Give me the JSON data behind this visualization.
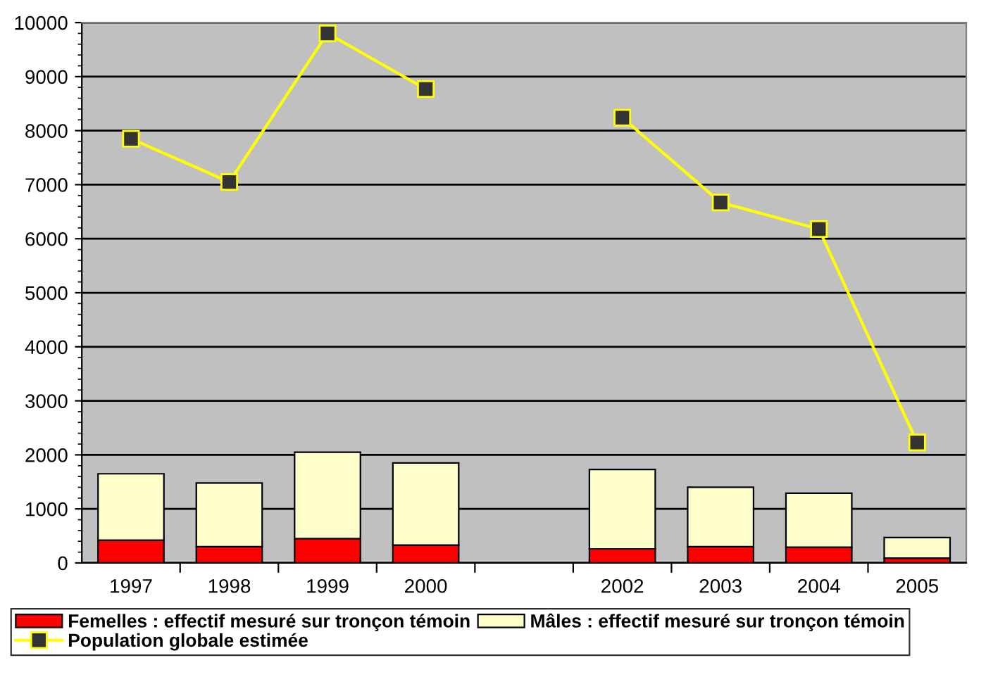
{
  "chart_data": {
    "type": "bar",
    "stacked": true,
    "categories": [
      "1997",
      "1998",
      "1999",
      "2000",
      null,
      "2002",
      "2003",
      "2004",
      "2005"
    ],
    "series": [
      {
        "name": "Femelles : effectif mesuré sur tronçon témoin",
        "color": "#ff0000",
        "values": [
          420,
          300,
          450,
          330,
          null,
          260,
          300,
          290,
          90
        ]
      },
      {
        "name": "Mâles : effectif mesuré sur tronçon témoin",
        "color": "#ffffcc",
        "values": [
          1230,
          1180,
          1600,
          1520,
          null,
          1470,
          1100,
          1000,
          380
        ]
      },
      {
        "name": "Population globale estimée",
        "type": "line",
        "color": "#ffff00",
        "marker": "square",
        "values": [
          7850,
          7050,
          9800,
          8770,
          null,
          8240,
          6670,
          6180,
          2230
        ]
      }
    ],
    "ylim": [
      0,
      10000
    ],
    "yticks": [
      0,
      1000,
      2000,
      3000,
      4000,
      5000,
      6000,
      7000,
      8000,
      9000,
      10000
    ],
    "grid": "y",
    "legend": "bottom"
  }
}
